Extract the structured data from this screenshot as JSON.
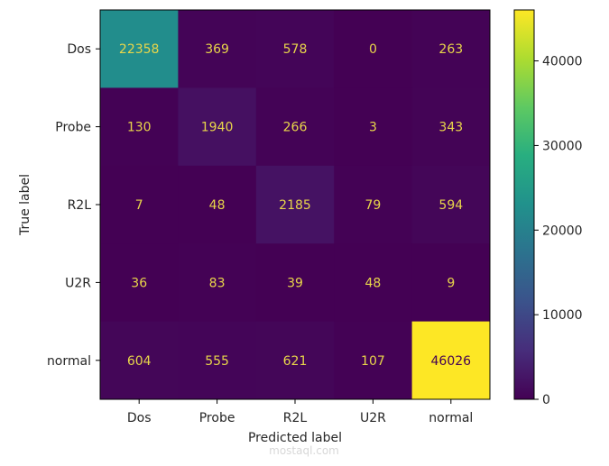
{
  "chart_data": {
    "type": "heatmap",
    "xlabel": "Predicted label",
    "ylabel": "True label",
    "x_categories": [
      "Dos",
      "Probe",
      "R2L",
      "U2R",
      "normal"
    ],
    "y_categories": [
      "Dos",
      "Probe",
      "R2L",
      "U2R",
      "normal"
    ],
    "matrix": [
      [
        22358,
        369,
        578,
        0,
        263
      ],
      [
        130,
        1940,
        266,
        3,
        343
      ],
      [
        7,
        48,
        2185,
        79,
        594
      ],
      [
        36,
        83,
        39,
        48,
        9
      ],
      [
        604,
        555,
        621,
        107,
        46026
      ]
    ],
    "colormap": "viridis",
    "colorbar": {
      "range": [
        0,
        46026
      ],
      "ticks": [
        0,
        10000,
        20000,
        30000,
        40000
      ]
    },
    "grid": false,
    "legend": "none"
  },
  "watermark": {
    "text": "mostaql.com"
  }
}
